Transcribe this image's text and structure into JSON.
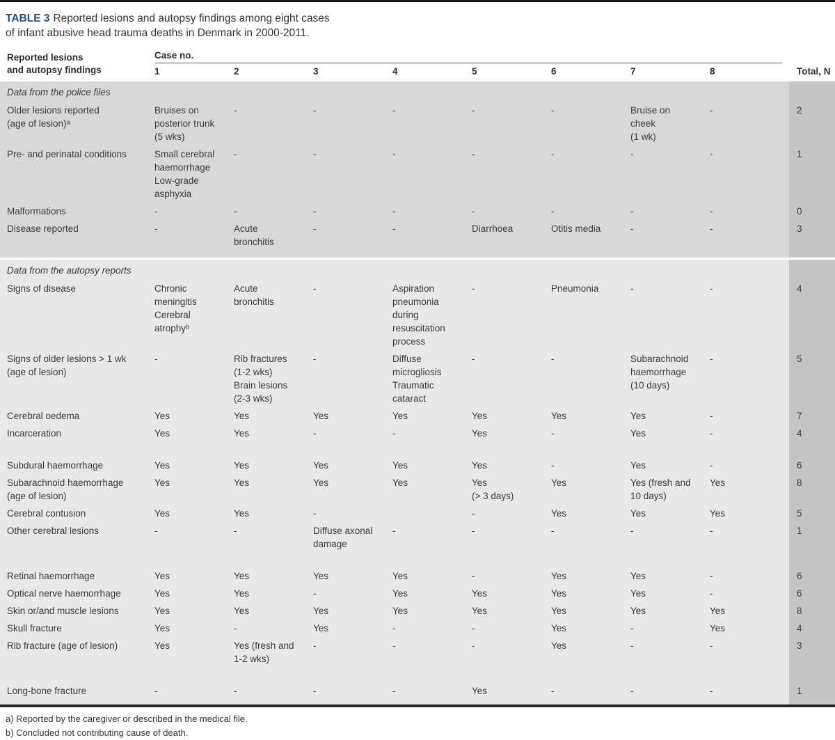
{
  "title": {
    "label": "TABLE 3",
    "text": "Reported lesions and autopsy findings among eight cases of infant abusive head trauma deaths in Denmark in 2000-2011."
  },
  "header": {
    "row_label": "Reported lesions\nand autopsy findings",
    "case_group": "Case no.",
    "case_numbers": [
      "1",
      "2",
      "3",
      "4",
      "5",
      "6",
      "7",
      "8"
    ],
    "total": "Total, N"
  },
  "colors": {
    "title_accent": "#20507f",
    "section_police_bg": "#d8d8d8",
    "section_autopsy_bg": "#e8e8e8",
    "total_band_bg": "#c5c5c5"
  },
  "sections": [
    {
      "label": "Data from the police files",
      "rows": [
        {
          "label": "Older lesions reported\n(age of lesion)ᵃ",
          "cells": [
            "Bruises on\nposterior trunk\n(5 wks)",
            "-",
            "-",
            "-",
            "-",
            "-",
            "Bruise on\ncheek\n(1 wk)",
            "-"
          ],
          "total": "2"
        },
        {
          "label": "Pre- and perinatal conditions",
          "cells": [
            "Small cerebral\nhaemorrhage\nLow-grade\nasphyxia",
            "-",
            "-",
            "-",
            "-",
            "-",
            "-",
            "-"
          ],
          "total": "1"
        },
        {
          "label": "Malformations",
          "cells": [
            "-",
            "-",
            "-",
            "-",
            "-",
            "-",
            "-",
            "-"
          ],
          "total": "0"
        },
        {
          "label": "Disease reported",
          "cells": [
            "-",
            "Acute\nbronchitis",
            "-",
            "-",
            "Diarrhoea",
            "Otitis media",
            "-",
            "-"
          ],
          "total": "3"
        }
      ]
    },
    {
      "label": "Data from the autopsy reports",
      "rows": [
        {
          "label": "Signs of disease",
          "cells": [
            "Chronic\nmeningitis\nCerebral\natrophyᵇ",
            "Acute\nbronchitis",
            "-",
            "Aspiration\npneumonia\nduring\nresuscitation\nprocess",
            "-",
            "Pneumonia",
            "-",
            "-"
          ],
          "total": "4"
        },
        {
          "label": "Signs of older lesions > 1 wk\n(age of lesion)",
          "cells": [
            "-",
            "Rib fractures\n(1-2 wks)\nBrain lesions\n(2-3 wks)",
            "-",
            "Diffuse\nmicrogliosis\nTraumatic\ncataract",
            "-",
            "-",
            "Subarachnoid\nhaemorrhage\n(10 days)",
            "-"
          ],
          "total": "5"
        },
        {
          "label": "Cerebral oedema",
          "cells": [
            "Yes",
            "Yes",
            "Yes",
            "Yes",
            "Yes",
            "Yes",
            "Yes",
            "-"
          ],
          "total": "7"
        },
        {
          "label": "Incarceration",
          "cells": [
            "Yes",
            "Yes",
            "-",
            "-",
            "Yes",
            "-",
            "Yes",
            "-"
          ],
          "total": "4"
        },
        {
          "label": "Subdural haemorrhage",
          "cells": [
            "Yes",
            "Yes",
            "Yes",
            "Yes",
            "Yes",
            "-",
            "Yes",
            "-"
          ],
          "total": "6"
        },
        {
          "label": "Subarachnoid haemorrhage\n(age of lesion)",
          "cells": [
            "Yes",
            "Yes",
            "Yes",
            "Yes",
            "Yes\n(> 3 days)",
            "Yes",
            "Yes (fresh and\n10 days)",
            "Yes"
          ],
          "total": "8"
        },
        {
          "label": "Cerebral contusion",
          "cells": [
            "Yes",
            "Yes",
            "-",
            "",
            "-",
            "Yes",
            "Yes",
            "Yes"
          ],
          "total": "5"
        },
        {
          "label": "Other cerebral lesions",
          "cells": [
            "-",
            "-",
            "Diffuse axonal\ndamage",
            "-",
            "-",
            "-",
            "-",
            "-"
          ],
          "total": "1"
        },
        {
          "label": "Retinal haemorrhage",
          "cells": [
            "Yes",
            "Yes",
            "Yes",
            "Yes",
            "-",
            "Yes",
            "Yes",
            "-"
          ],
          "total": "6"
        },
        {
          "label": "Optical nerve haemorrhage",
          "cells": [
            "Yes",
            "Yes",
            "-",
            "Yes",
            "Yes",
            "Yes",
            "Yes",
            "-"
          ],
          "total": "6"
        },
        {
          "label": "Skin or/and muscle lesions",
          "cells": [
            "Yes",
            "Yes",
            "Yes",
            "Yes",
            "Yes",
            "Yes",
            "Yes",
            "Yes"
          ],
          "total": "8"
        },
        {
          "label": "Skull fracture",
          "cells": [
            "Yes",
            "-",
            "Yes",
            "-",
            "-",
            "Yes",
            "-",
            "Yes"
          ],
          "total": "4"
        },
        {
          "label": "Rib fracture (age of lesion)",
          "cells": [
            "Yes",
            "Yes (fresh and\n1-2 wks)",
            "-",
            "-",
            "-",
            "Yes",
            "-",
            "-"
          ],
          "total": "3"
        },
        {
          "label": "Long-bone fracture",
          "cells": [
            "-",
            "-",
            "-",
            "-",
            "Yes",
            "-",
            "-",
            "-"
          ],
          "total": "1"
        }
      ]
    }
  ],
  "footnotes": [
    "a) Reported by the caregiver or described in the medical file.",
    "b) Concluded not contributing cause of death."
  ]
}
